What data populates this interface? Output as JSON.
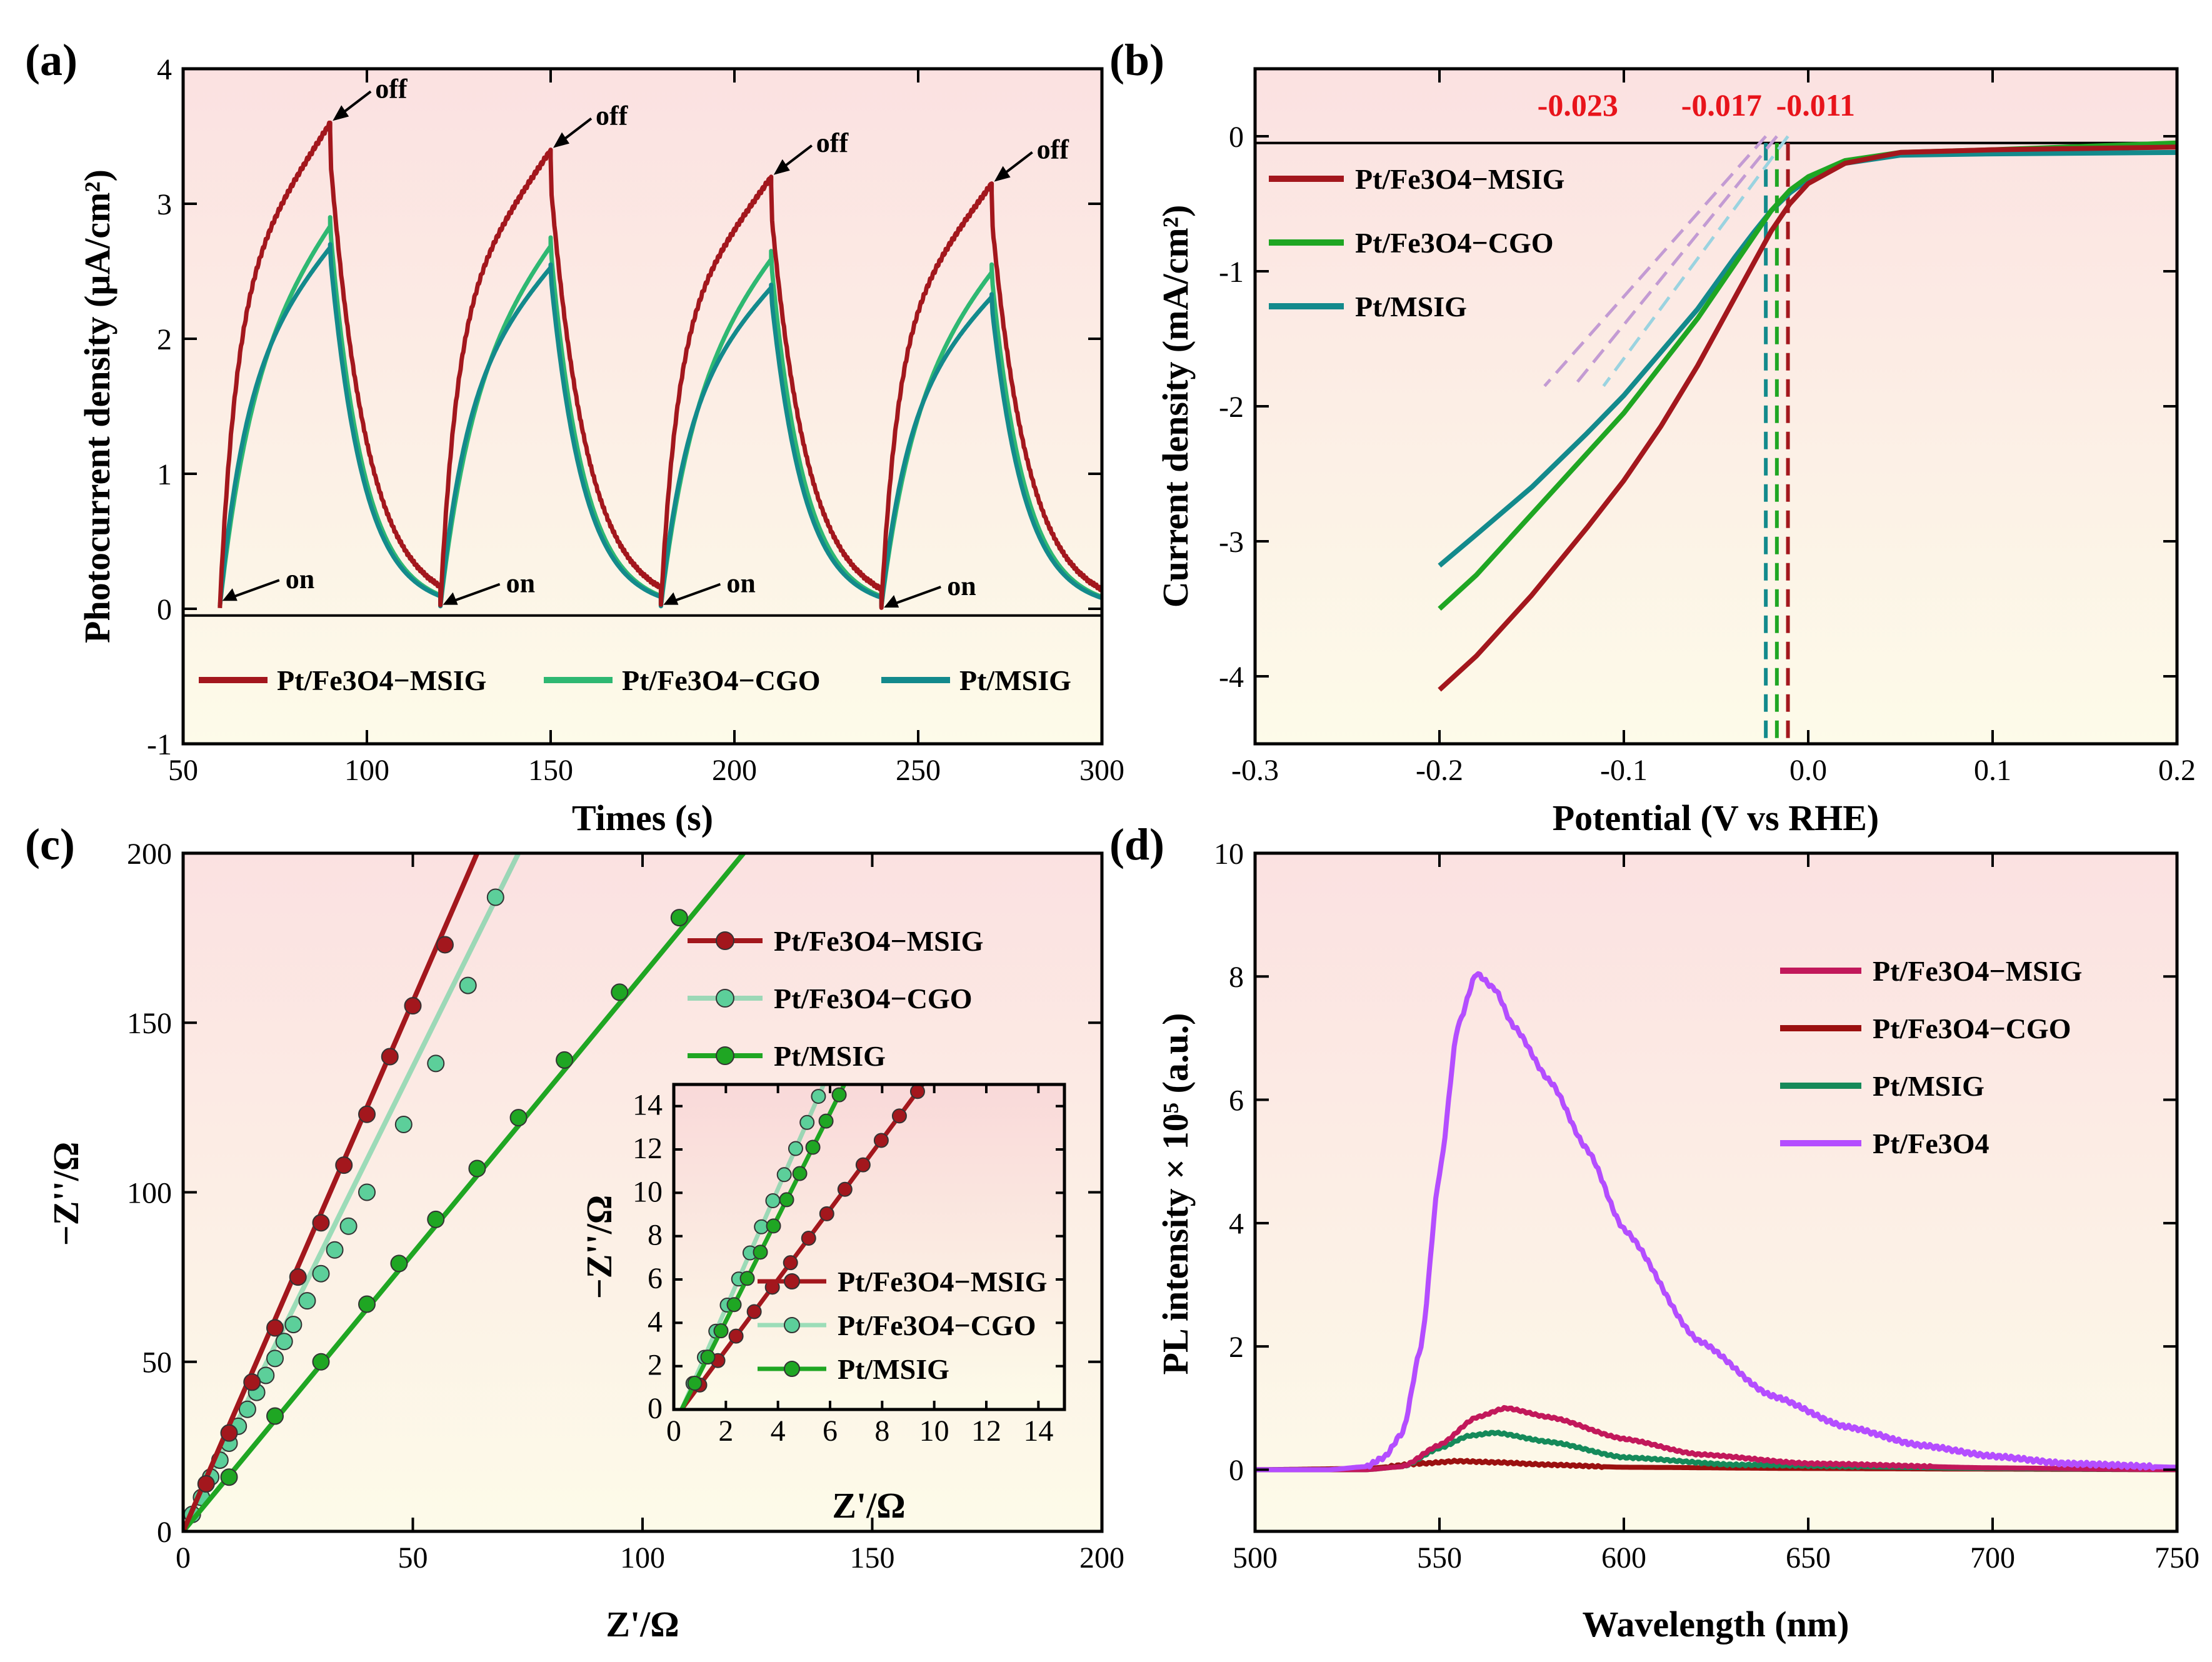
{
  "chart_data": [
    {
      "id": "a",
      "type": "line",
      "panel_label": "(a)",
      "xlabel": "Times (s)",
      "ylabel": "Photocurrent density (μA/cm²)",
      "xlim": [
        50,
        300
      ],
      "ylim": [
        -1,
        4
      ],
      "xticks": [
        "50",
        "100",
        "150",
        "200",
        "250",
        "300"
      ],
      "yticks": [
        "-1",
        "0",
        "1",
        "2",
        "3",
        "4"
      ],
      "baseline": -0.05,
      "light_on": [
        60,
        120,
        180,
        240
      ],
      "light_off": [
        90,
        150,
        210,
        270
      ],
      "series": [
        {
          "name": "Pt/Fe3O4−MSIG",
          "color": "#a3171d",
          "peaks": [
            3.6,
            3.4,
            3.2,
            3.15
          ],
          "tau_on": 4.5
        },
        {
          "name": "Pt/Fe3O4−CGO",
          "color": "#2eb872",
          "peaks": [
            2.9,
            2.75,
            2.65,
            2.55
          ],
          "tau_on": 9
        },
        {
          "name": "Pt/MSIG",
          "color": "#138a8c",
          "peaks": [
            2.7,
            2.55,
            2.4,
            2.33
          ],
          "tau_on": 7
        }
      ],
      "annotations": [
        {
          "text": "off",
          "x": 90,
          "y": 3.6
        },
        {
          "text": "off",
          "x": 150,
          "y": 3.4
        },
        {
          "text": "off",
          "x": 210,
          "y": 3.2
        },
        {
          "text": "off",
          "x": 270,
          "y": 3.15
        },
        {
          "text": "on",
          "x": 60,
          "y": 0.05
        },
        {
          "text": "on",
          "x": 120,
          "y": 0.02
        },
        {
          "text": "on",
          "x": 180,
          "y": 0.02
        },
        {
          "text": "on",
          "x": 240,
          "y": 0.0
        }
      ],
      "legend": [
        "Pt/Fe3O4−MSIG",
        "Pt/Fe3O4−CGO",
        "Pt/MSIG"
      ]
    },
    {
      "id": "b",
      "type": "line",
      "panel_label": "(b)",
      "xlabel": "Potential (V vs RHE)",
      "ylabel": "Current density (mA/cm²)",
      "xlim": [
        -0.3,
        0.2
      ],
      "ylim": [
        -4.5,
        0.5
      ],
      "xticks": [
        "-0.3",
        "-0.2",
        "-0.1",
        "0.0",
        "0.1",
        "0.2"
      ],
      "yticks": [
        "-4",
        "-3",
        "-2",
        "-1",
        "0"
      ],
      "series": [
        {
          "name": "Pt/Fe3O4−MSIG",
          "color": "#a3171d",
          "onset": -0.011,
          "x": [
            -0.2,
            -0.18,
            -0.15,
            -0.12,
            -0.1,
            -0.08,
            -0.06,
            -0.04,
            -0.03,
            -0.02,
            -0.01,
            0.0,
            0.02,
            0.05,
            0.1,
            0.2
          ],
          "y": [
            -4.1,
            -3.85,
            -3.4,
            -2.9,
            -2.55,
            -2.15,
            -1.7,
            -1.2,
            -0.95,
            -0.7,
            -0.5,
            -0.35,
            -0.2,
            -0.12,
            -0.1,
            -0.08
          ]
        },
        {
          "name": "Pt/Fe3O4−CGO",
          "color": "#1fa623",
          "onset": -0.017,
          "x": [
            -0.2,
            -0.18,
            -0.15,
            -0.12,
            -0.1,
            -0.08,
            -0.06,
            -0.04,
            -0.03,
            -0.02,
            -0.01,
            0.0,
            0.02,
            0.05,
            0.1,
            0.2
          ],
          "y": [
            -3.5,
            -3.25,
            -2.8,
            -2.35,
            -2.05,
            -1.7,
            -1.35,
            -0.95,
            -0.75,
            -0.55,
            -0.4,
            -0.3,
            -0.18,
            -0.12,
            -0.1,
            -0.05
          ]
        },
        {
          "name": "Pt/MSIG",
          "color": "#138a8c",
          "onset": -0.023,
          "x": [
            -0.2,
            -0.18,
            -0.15,
            -0.12,
            -0.1,
            -0.08,
            -0.06,
            -0.04,
            -0.03,
            -0.02,
            -0.01,
            0.0,
            0.02,
            0.05,
            0.1,
            0.2
          ],
          "y": [
            -3.18,
            -2.95,
            -2.6,
            -2.2,
            -1.92,
            -1.6,
            -1.28,
            -0.9,
            -0.72,
            -0.55,
            -0.42,
            -0.32,
            -0.2,
            -0.14,
            -0.13,
            -0.12
          ]
        }
      ],
      "annotations": [
        "-0.023",
        "-0.017",
        "-0.011"
      ],
      "legend": [
        "Pt/Fe3O4−MSIG",
        "Pt/Fe3O4−CGO",
        "Pt/MSIG"
      ]
    },
    {
      "id": "c",
      "type": "scatter",
      "panel_label": "(c)",
      "xlabel": "Z'/Ω",
      "ylabel": "−Z''/Ω",
      "xlim": [
        0,
        200
      ],
      "ylim": [
        0,
        200
      ],
      "xticks": [
        "0",
        "50",
        "100",
        "150",
        "200"
      ],
      "yticks": [
        "0",
        "50",
        "100",
        "150",
        "200"
      ],
      "series": [
        {
          "name": "Pt/Fe3O4−MSIG",
          "color": "#a3171d",
          "slope": 3.1,
          "x": [
            5,
            10,
            15,
            20,
            25,
            30,
            35,
            40,
            45,
            50,
            57
          ],
          "y": [
            14,
            29,
            44,
            60,
            75,
            91,
            108,
            123,
            140,
            155,
            173
          ]
        },
        {
          "name": "Pt/Fe3O4−CGO",
          "color": "#5ccf9a",
          "slope": 2.7,
          "x": [
            2,
            4,
            6,
            8,
            10,
            12,
            14,
            16,
            18,
            20,
            22,
            24,
            27,
            30,
            33,
            36,
            40,
            48,
            55,
            62,
            68
          ],
          "y": [
            5,
            10,
            16,
            21,
            26,
            31,
            36,
            41,
            46,
            51,
            56,
            61,
            68,
            76,
            83,
            90,
            100,
            120,
            138,
            161,
            187
          ]
        },
        {
          "name": "Pt/MSIG",
          "color": "#1fa623",
          "slope": 1.65,
          "x": [
            10,
            20,
            30,
            40,
            47,
            55,
            64,
            73,
            83,
            95,
            108
          ],
          "y": [
            16,
            34,
            50,
            67,
            79,
            92,
            107,
            122,
            139,
            159,
            181
          ]
        }
      ],
      "legend": [
        "Pt/Fe3O4−MSIG",
        "Pt/Fe3O4−CGO",
        "Pt/MSIG"
      ],
      "inset": {
        "xlabel": "Z'/Ω",
        "ylabel": "−Z''/Ω",
        "xlim": [
          0,
          15
        ],
        "ylim": [
          0,
          15
        ],
        "xticks": [
          "0",
          "2",
          "4",
          "6",
          "8",
          "10",
          "12",
          "14"
        ],
        "yticks": [
          "0",
          "2",
          "4",
          "6",
          "8",
          "10",
          "12",
          "14"
        ],
        "legend": [
          "Pt/Fe3O4−MSIG",
          "Pt/Fe3O4−CGO",
          "Pt/MSIG"
        ],
        "series": [
          {
            "name": "Pt/Fe3O4−MSIG",
            "color": "#a3171d",
            "slope": 1.62
          },
          {
            "name": "Pt/Fe3O4−CGO",
            "color": "#5ccf9a",
            "slope": 2.75
          },
          {
            "name": "Pt/MSIG",
            "color": "#1fa623",
            "slope": 2.4
          }
        ]
      }
    },
    {
      "id": "d",
      "type": "line",
      "panel_label": "(d)",
      "xlabel": "Wavelength (nm)",
      "ylabel": "PL intensity × 10⁵ (a.u.)",
      "xlim": [
        500,
        750
      ],
      "ylim": [
        -1,
        10
      ],
      "xticks": [
        "500",
        "550",
        "600",
        "650",
        "700",
        "750"
      ],
      "yticks": [
        "0",
        "2",
        "4",
        "6",
        "8",
        "10"
      ],
      "series": [
        {
          "name": "Pt/Fe3O4−MSIG",
          "color": "#c2185b",
          "x": [
            500,
            530,
            540,
            550,
            560,
            568,
            580,
            600,
            620,
            650,
            700,
            750
          ],
          "y": [
            0,
            0,
            0.05,
            0.4,
            0.85,
            1.0,
            0.85,
            0.5,
            0.25,
            0.1,
            0.03,
            0.0
          ]
        },
        {
          "name": "Pt/Fe3O4−CGO",
          "color": "#9b1010",
          "x": [
            500,
            530,
            545,
            555,
            565,
            580,
            600,
            650,
            700,
            750
          ],
          "y": [
            0,
            0.02,
            0.1,
            0.14,
            0.12,
            0.08,
            0.04,
            0.02,
            0.01,
            0.0
          ]
        },
        {
          "name": "Pt/MSIG",
          "color": "#158a5a",
          "x": [
            500,
            530,
            540,
            550,
            558,
            565,
            580,
            600,
            630,
            700,
            750
          ],
          "y": [
            0,
            0,
            0.05,
            0.35,
            0.55,
            0.6,
            0.45,
            0.2,
            0.08,
            0.02,
            0.0
          ]
        },
        {
          "name": "Pt/Fe3O4",
          "color": "#b44dff",
          "x": [
            500,
            520,
            530,
            535,
            540,
            545,
            550,
            555,
            560,
            565,
            570,
            580,
            590,
            600,
            620,
            640,
            660,
            680,
            700,
            720,
            750
          ],
          "y": [
            0,
            0,
            0.05,
            0.2,
            0.6,
            2.0,
            4.8,
            7.2,
            8.05,
            7.8,
            7.2,
            6.3,
            5.2,
            3.9,
            2.1,
            1.2,
            0.7,
            0.4,
            0.22,
            0.1,
            0.04
          ]
        }
      ],
      "legend": [
        "Pt/Fe3O4−MSIG",
        "Pt/Fe3O4−CGO",
        "Pt/MSIG",
        "Pt/Fe3O4"
      ]
    }
  ]
}
